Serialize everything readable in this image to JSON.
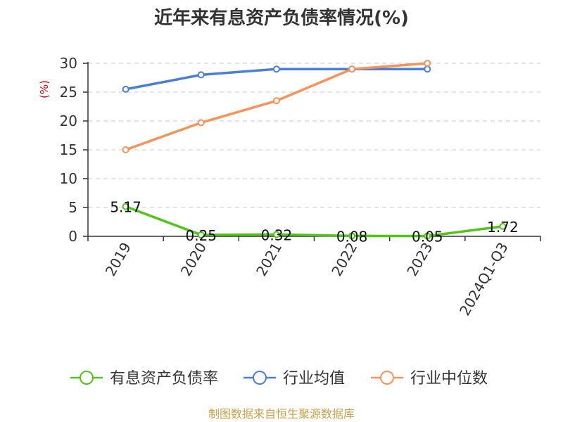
{
  "chart_data": {
    "type": "line",
    "title": "近年来有息资产负债率情况(%)",
    "ylabel": "(%)",
    "categories": [
      "2019",
      "2020",
      "2021",
      "2022",
      "2023",
      "2024Q1-Q3"
    ],
    "ylim": [
      0,
      30
    ],
    "yticks": [
      0,
      5,
      10,
      15,
      20,
      25,
      30
    ],
    "ytick_labels": [
      "0",
      "5",
      "10",
      "15",
      "20",
      "25",
      "30"
    ],
    "grid": true,
    "legend_position": "bottom",
    "series": [
      {
        "name": "有息资产负债率",
        "values": [
          5.17,
          0.25,
          0.32,
          0.08,
          0.05,
          1.72
        ],
        "labels": [
          "5.17",
          "0.25",
          "0.32",
          "0.08",
          "0.05",
          "1.72"
        ],
        "color": "#52c41a"
      },
      {
        "name": "行业均值",
        "values": [
          25.5,
          28.0,
          29.0,
          29.0,
          29.0,
          null
        ],
        "color": "#4a7fd4"
      },
      {
        "name": "行业中位数",
        "values": [
          15.0,
          19.7,
          23.5,
          29.0,
          30.0,
          null
        ],
        "color": "#f5935a"
      }
    ]
  },
  "source": "制图数据来自恒生聚源数据库"
}
